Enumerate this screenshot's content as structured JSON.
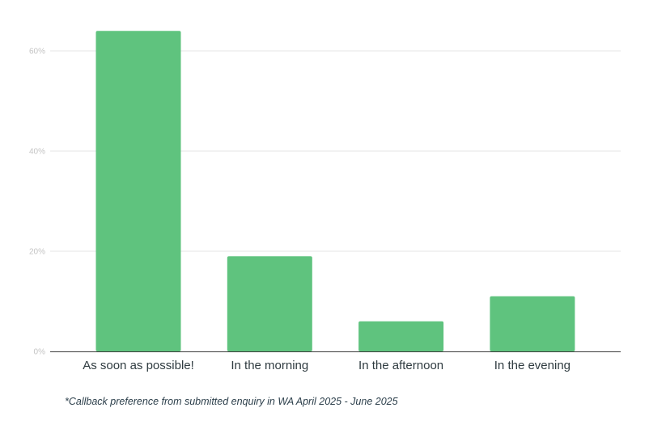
{
  "chart_data": {
    "type": "bar",
    "categories": [
      "As soon as possible!",
      "In the morning",
      "In the afternoon",
      "In the evening"
    ],
    "values": [
      64,
      19,
      6,
      11
    ],
    "y_ticks": [
      0,
      20,
      40,
      60
    ],
    "y_tick_labels": [
      "0%",
      "20%",
      "40%",
      "60%"
    ],
    "ylim": [
      0,
      65
    ],
    "grid": true,
    "bar_color": "#5fc37e",
    "title": "",
    "xlabel": "",
    "ylabel": ""
  },
  "footnote": "*Callback preference from submitted enquiry in WA April 2025 - June 2025"
}
